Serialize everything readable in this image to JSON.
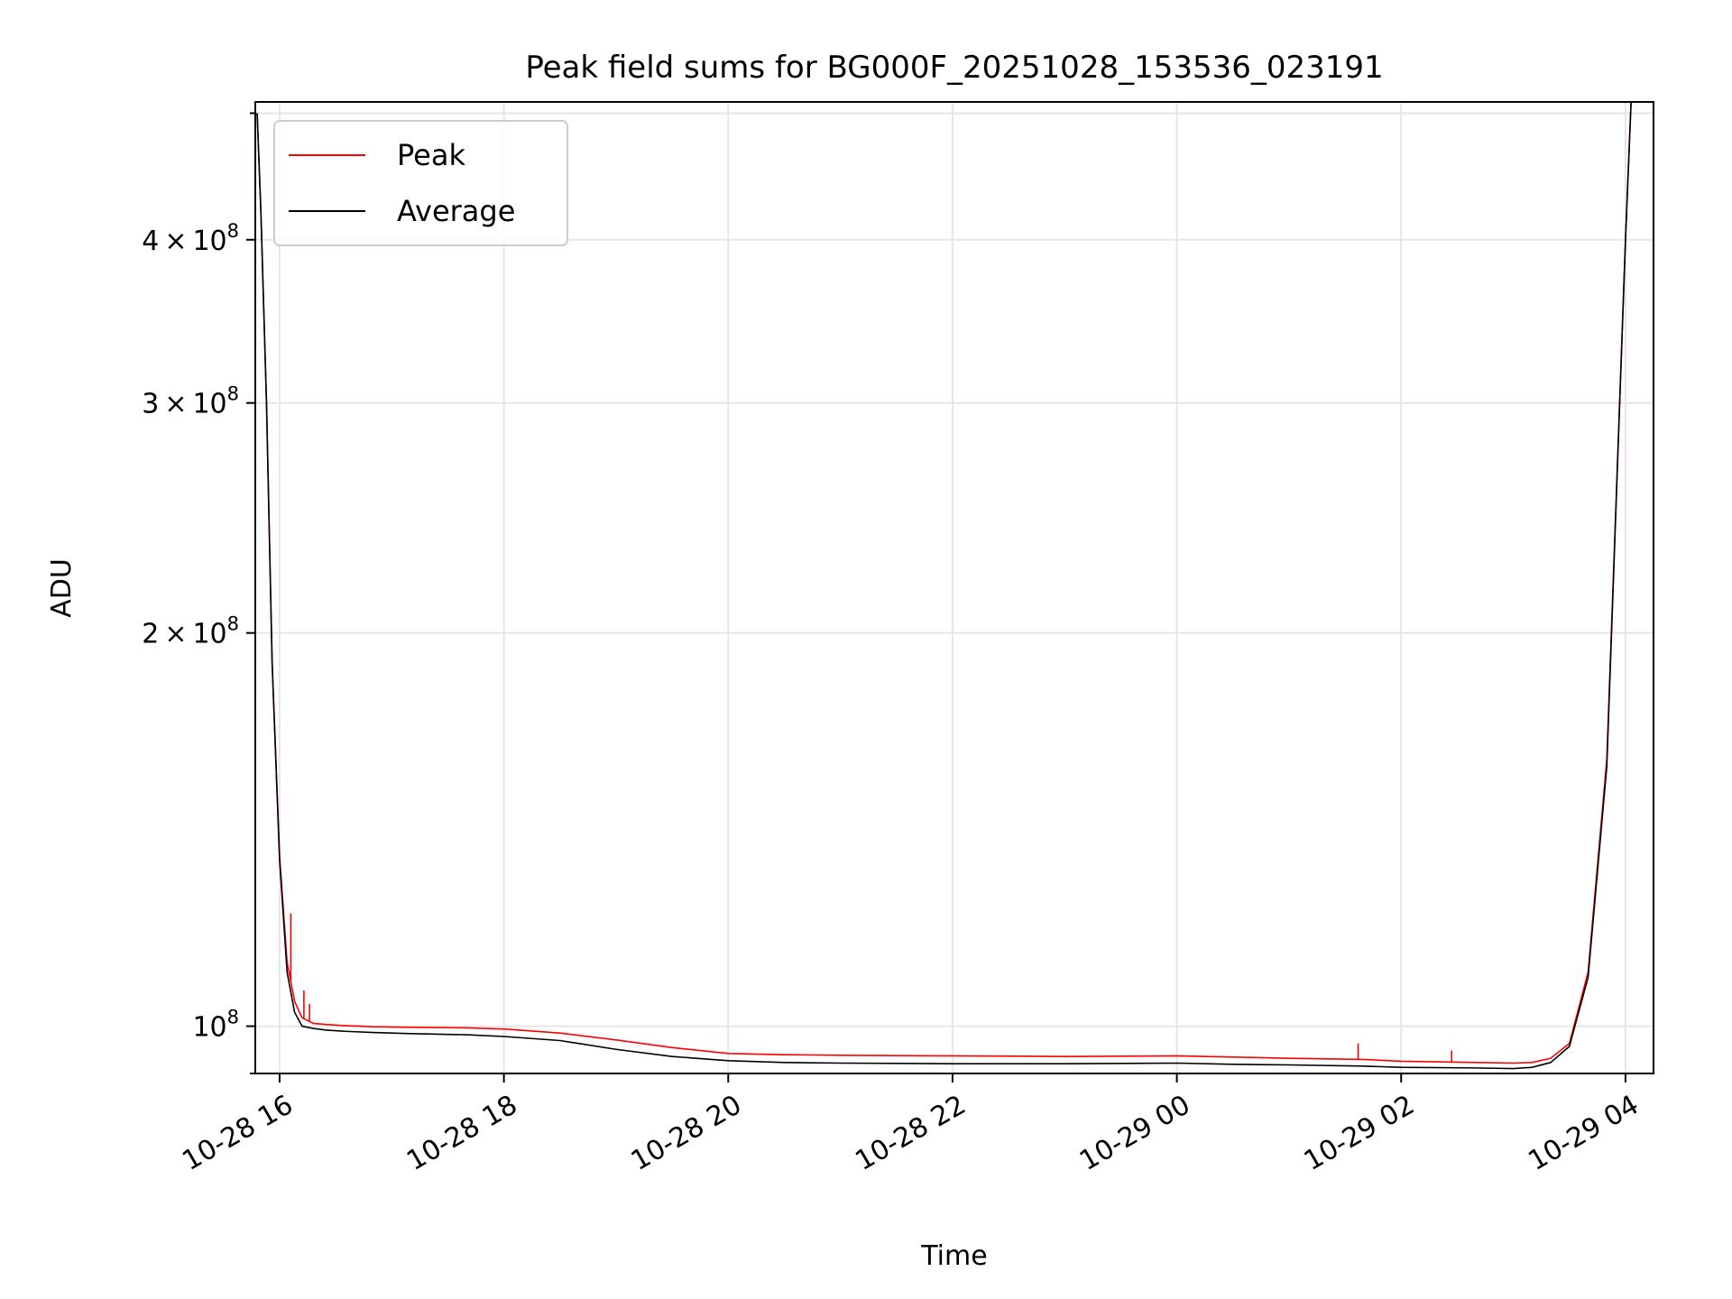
{
  "chart_data": {
    "type": "line",
    "title": "Peak field sums for BG000F_20251028_153536_023191",
    "xlabel": "Time",
    "ylabel": "ADU",
    "y_scale": "log",
    "xlim": [
      "2025-10-28 15:47",
      "2025-10-29 04:15"
    ],
    "ylim": [
      92000000,
      510000000
    ],
    "grid": true,
    "legend_position": "top-left",
    "x_ticks": [
      {
        "value": "2025-10-28 16:00",
        "label": "10-28 16"
      },
      {
        "value": "2025-10-28 18:00",
        "label": "10-28 18"
      },
      {
        "value": "2025-10-28 20:00",
        "label": "10-28 20"
      },
      {
        "value": "2025-10-28 22:00",
        "label": "10-28 22"
      },
      {
        "value": "2025-10-29 00:00",
        "label": "10-29 00"
      },
      {
        "value": "2025-10-29 02:00",
        "label": "10-29 02"
      },
      {
        "value": "2025-10-29 04:00",
        "label": "10-29 04"
      }
    ],
    "y_ticks": [
      {
        "value": 100000000,
        "mantissa": "",
        "exponent": "8"
      },
      {
        "value": 200000000,
        "mantissa": "2",
        "exponent": "8"
      },
      {
        "value": 300000000,
        "mantissa": "3",
        "exponent": "8"
      },
      {
        "value": 400000000,
        "mantissa": "4",
        "exponent": "8"
      }
    ],
    "y_minor_ticks": [
      500000000
    ],
    "tick_times_sign": "×",
    "tick_base": "10",
    "series": [
      {
        "name": "Peak",
        "color": "#ff0000",
        "x": [
          "2025-10-28 15:48",
          "2025-10-28 15:50",
          "2025-10-28 15:53",
          "2025-10-28 15:56",
          "2025-10-28 16:00",
          "2025-10-28 16:04",
          "2025-10-28 16:08",
          "2025-10-28 16:12",
          "2025-10-28 16:18",
          "2025-10-28 16:25",
          "2025-10-28 16:35",
          "2025-10-28 16:50",
          "2025-10-28 17:10",
          "2025-10-28 17:40",
          "2025-10-28 18:00",
          "2025-10-28 18:30",
          "2025-10-28 19:00",
          "2025-10-28 19:30",
          "2025-10-28 20:00",
          "2025-10-28 20:30",
          "2025-10-28 21:00",
          "2025-10-28 22:00",
          "2025-10-28 23:00",
          "2025-10-29 00:00",
          "2025-10-29 00:30",
          "2025-10-29 01:00",
          "2025-10-29 01:40",
          "2025-10-29 02:00",
          "2025-10-29 02:40",
          "2025-10-29 03:00",
          "2025-10-29 03:10",
          "2025-10-29 03:20",
          "2025-10-29 03:30",
          "2025-10-29 03:40",
          "2025-10-29 03:50",
          "2025-10-29 04:00",
          "2025-10-29 04:03"
        ],
        "y": [
          500000000,
          420000000,
          300000000,
          190000000,
          135000000,
          112000000,
          104500000,
          101500000,
          100500000,
          100300000,
          100100000,
          99900000,
          99800000,
          99700000,
          99500000,
          98800000,
          97600000,
          96300000,
          95300000,
          95100000,
          95000000,
          94900000,
          94800000,
          94900000,
          94700000,
          94500000,
          94300000,
          94000000,
          93800000,
          93700000,
          93800000,
          94500000,
          97000000,
          110000000,
          160000000,
          400000000,
          510000000
        ],
        "spikes": [
          {
            "x": "2025-10-28 16:06",
            "y": 122000000
          },
          {
            "x": "2025-10-28 16:13",
            "y": 106500000
          },
          {
            "x": "2025-10-28 16:16",
            "y": 104000000
          },
          {
            "x": "2025-10-29 01:37",
            "y": 97000000
          },
          {
            "x": "2025-10-29 02:27",
            "y": 95800000
          }
        ]
      },
      {
        "name": "Average",
        "color": "#000000",
        "x": [
          "2025-10-28 15:48",
          "2025-10-28 15:50",
          "2025-10-28 15:53",
          "2025-10-28 15:56",
          "2025-10-28 16:00",
          "2025-10-28 16:04",
          "2025-10-28 16:08",
          "2025-10-28 16:12",
          "2025-10-28 16:18",
          "2025-10-28 16:25",
          "2025-10-28 16:35",
          "2025-10-28 16:50",
          "2025-10-28 17:10",
          "2025-10-28 17:40",
          "2025-10-28 18:00",
          "2025-10-28 18:30",
          "2025-10-28 19:00",
          "2025-10-28 19:30",
          "2025-10-28 20:00",
          "2025-10-28 20:30",
          "2025-10-28 21:00",
          "2025-10-28 22:00",
          "2025-10-28 23:00",
          "2025-10-29 00:00",
          "2025-10-29 00:30",
          "2025-10-29 01:00",
          "2025-10-29 01:40",
          "2025-10-29 02:00",
          "2025-10-29 02:40",
          "2025-10-29 03:00",
          "2025-10-29 03:10",
          "2025-10-29 03:20",
          "2025-10-29 03:30",
          "2025-10-29 03:40",
          "2025-10-29 03:50",
          "2025-10-29 04:00",
          "2025-10-29 04:03"
        ],
        "y": [
          500000000,
          420000000,
          300000000,
          190000000,
          134000000,
          110000000,
          102500000,
          100000000,
          99600000,
          99300000,
          99100000,
          98900000,
          98700000,
          98500000,
          98200000,
          97500000,
          96000000,
          94800000,
          94100000,
          93800000,
          93700000,
          93600000,
          93600000,
          93700000,
          93500000,
          93400000,
          93200000,
          93000000,
          92900000,
          92800000,
          93000000,
          93800000,
          96500000,
          109000000,
          158000000,
          400000000,
          510000000
        ]
      }
    ]
  }
}
